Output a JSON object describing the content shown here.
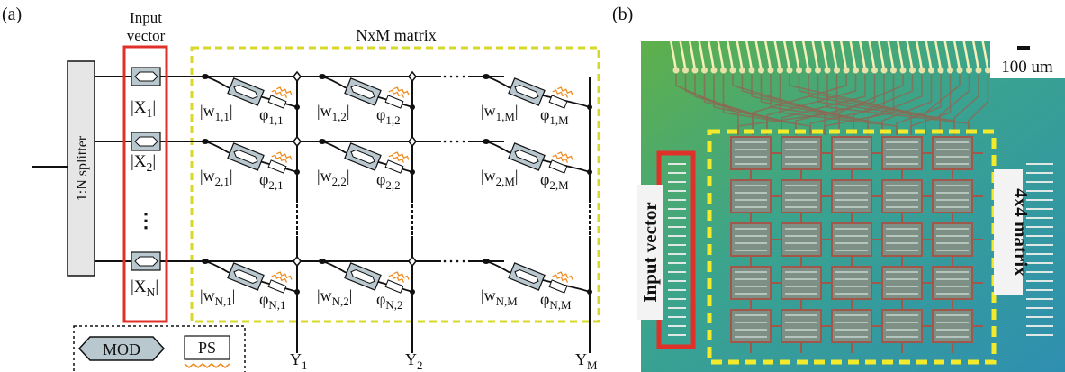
{
  "panel_a": {
    "label": "(a)",
    "input_title": [
      "Input",
      "vector"
    ],
    "matrix_title": "NxM matrix",
    "splitter": "1:N splitter",
    "inputs": [
      {
        "main": "|X",
        "sub": "1",
        "end": "|"
      },
      {
        "main": "|X",
        "sub": "2",
        "end": "|"
      },
      {
        "main": "|X",
        "sub": "N",
        "end": "|"
      }
    ],
    "input_ellipsis": "⋮",
    "weights": [
      [
        {
          "main": "|w",
          "sub": "1,1",
          "end": "|"
        },
        {
          "main": "|w",
          "sub": "1,2",
          "end": "|"
        },
        {
          "main": "|w",
          "sub": "1,M",
          "end": "|"
        }
      ],
      [
        {
          "main": "|w",
          "sub": "2,1",
          "end": "|"
        },
        {
          "main": "|w",
          "sub": "2,2",
          "end": "|"
        },
        {
          "main": "|w",
          "sub": "2,M",
          "end": "|"
        }
      ],
      [
        {
          "main": "|w",
          "sub": "N,1",
          "end": "|"
        },
        {
          "main": "|w",
          "sub": "N,2",
          "end": "|"
        },
        {
          "main": "|w",
          "sub": "N,M",
          "end": "|"
        }
      ]
    ],
    "phases": [
      [
        {
          "main": "φ",
          "sub": "1,1"
        },
        {
          "main": "φ",
          "sub": "1,2"
        },
        {
          "main": "φ",
          "sub": "1,M"
        }
      ],
      [
        {
          "main": "φ",
          "sub": "2,1"
        },
        {
          "main": "φ",
          "sub": "2,2"
        },
        {
          "main": "φ",
          "sub": "2,M"
        }
      ],
      [
        {
          "main": "φ",
          "sub": "N,1"
        },
        {
          "main": "φ",
          "sub": "N,2"
        },
        {
          "main": "φ",
          "sub": "N,M"
        }
      ]
    ],
    "outputs": [
      {
        "main": "Y",
        "sub": "1"
      },
      {
        "main": "Y",
        "sub": "2"
      },
      {
        "main": "Y",
        "sub": "M"
      }
    ],
    "legend": {
      "mod": "MOD",
      "ps": "PS"
    }
  },
  "panel_b": {
    "label": "(b)",
    "scale": "100 um",
    "input": "Input vector",
    "matrix": "4x4 matrix"
  }
}
